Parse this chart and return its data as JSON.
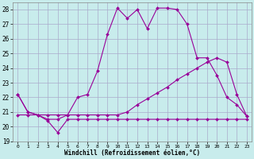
{
  "title": "",
  "xlabel": "Windchill (Refroidissement éolien,°C)",
  "bg_color": "#c8ecec",
  "grid_color": "#aaaacc",
  "line_color": "#990099",
  "xlim": [
    -0.5,
    23.5
  ],
  "ylim": [
    19,
    28.5
  ],
  "xticks": [
    0,
    1,
    2,
    3,
    4,
    5,
    6,
    7,
    8,
    9,
    10,
    11,
    12,
    13,
    14,
    15,
    16,
    17,
    18,
    19,
    20,
    21,
    22,
    23
  ],
  "yticks": [
    19,
    20,
    21,
    22,
    23,
    24,
    25,
    26,
    27,
    28
  ],
  "line1_x": [
    0,
    1,
    2,
    3,
    4,
    5,
    6,
    7,
    8,
    9,
    10,
    11,
    12,
    13,
    14,
    15,
    16,
    17,
    18,
    19,
    20,
    21,
    22,
    23
  ],
  "line1_y": [
    22.2,
    21.0,
    20.8,
    20.4,
    19.6,
    20.5,
    20.5,
    20.5,
    20.5,
    20.5,
    20.5,
    20.5,
    20.5,
    20.5,
    20.5,
    20.5,
    20.5,
    20.5,
    20.5,
    20.5,
    20.5,
    20.5,
    20.5,
    20.5
  ],
  "line2_x": [
    0,
    1,
    2,
    3,
    4,
    5,
    6,
    7,
    8,
    9,
    10,
    11,
    12,
    13,
    14,
    15,
    16,
    17,
    18,
    19,
    20,
    21,
    22,
    23
  ],
  "line2_y": [
    20.8,
    20.8,
    20.8,
    20.8,
    20.8,
    20.8,
    20.8,
    20.8,
    20.8,
    20.8,
    20.8,
    21.0,
    21.5,
    21.9,
    22.3,
    22.7,
    23.2,
    23.6,
    24.0,
    24.4,
    24.7,
    24.4,
    22.2,
    20.7
  ],
  "line3_x": [
    0,
    1,
    2,
    3,
    4,
    5,
    6,
    7,
    8,
    9,
    10,
    11,
    12,
    13,
    14,
    15,
    16,
    17,
    18,
    19,
    20,
    21,
    22,
    23
  ],
  "line3_y": [
    22.2,
    21.0,
    20.8,
    20.5,
    20.5,
    20.8,
    22.0,
    22.2,
    23.8,
    26.3,
    28.1,
    27.4,
    28.0,
    26.7,
    28.1,
    28.1,
    28.0,
    27.0,
    24.7,
    24.7,
    23.5,
    22.0,
    21.5,
    20.7
  ],
  "marker": "D",
  "markersize": 2,
  "linewidth": 0.8
}
